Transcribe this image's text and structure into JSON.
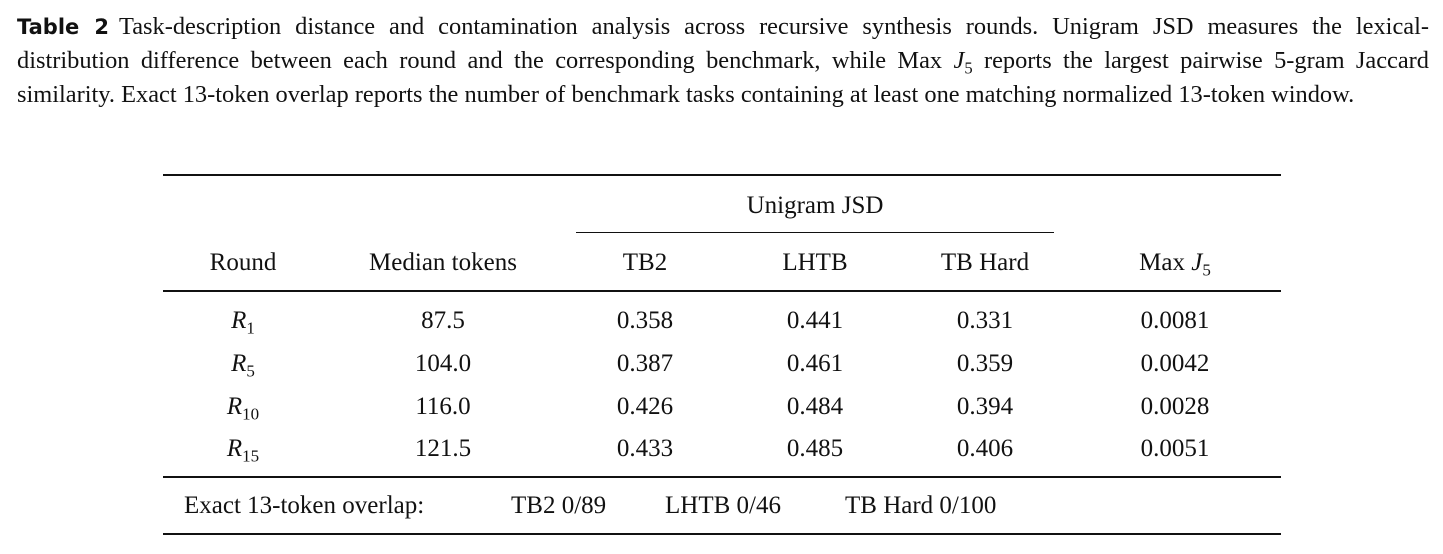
{
  "caption": {
    "label": "Table 2",
    "text": "Task-description distance and contamination analysis across recursive synthesis rounds. Unigram JSD measures the lexical-distribution difference between each round and the corresponding benchmark, while Max J5 reports the largest pairwise 5-gram Jaccard similarity. Exact 13-token overlap reports the number of benchmark tasks containing at least one matching normalized 13-token window.",
    "before_math": "Task-description distance and contamination analysis across recursive synthesis rounds. Unigram JSD measures the lexical-distribution difference between each round and the corresponding benchmark, while Max ",
    "math_var": "J",
    "math_sub": "5",
    "after_math": " reports the largest pairwise 5-gram Jaccard similarity. Exact 13-token overlap reports the number of benchmark tasks containing at least one matching normalized 13-token window."
  },
  "table": {
    "group_header": "Unigram JSD",
    "headers": {
      "round": "Round",
      "median_tokens": "Median tokens",
      "tb2": "TB2",
      "lhtb": "LHTB",
      "tb_hard": "TB Hard",
      "max_prefix": "Max ",
      "max_var": "J",
      "max_sub": "5"
    },
    "rows": [
      {
        "round_var": "R",
        "round_sub": "1",
        "median_tokens": "87.5",
        "tb2": "0.358",
        "lhtb": "0.441",
        "tb_hard": "0.331",
        "max_j5": "0.0081"
      },
      {
        "round_var": "R",
        "round_sub": "5",
        "median_tokens": "104.0",
        "tb2": "0.387",
        "lhtb": "0.461",
        "tb_hard": "0.359",
        "max_j5": "0.0042"
      },
      {
        "round_var": "R",
        "round_sub": "10",
        "median_tokens": "116.0",
        "tb2": "0.426",
        "lhtb": "0.484",
        "tb_hard": "0.394",
        "max_j5": "0.0028"
      },
      {
        "round_var": "R",
        "round_sub": "15",
        "median_tokens": "121.5",
        "tb2": "0.433",
        "lhtb": "0.485",
        "tb_hard": "0.406",
        "max_j5": "0.0051"
      }
    ],
    "footer": {
      "label": "Exact 13-token overlap:",
      "tb2": "TB2 0/89",
      "lhtb": "LHTB 0/46",
      "tb_hard": "TB Hard 0/100"
    }
  }
}
